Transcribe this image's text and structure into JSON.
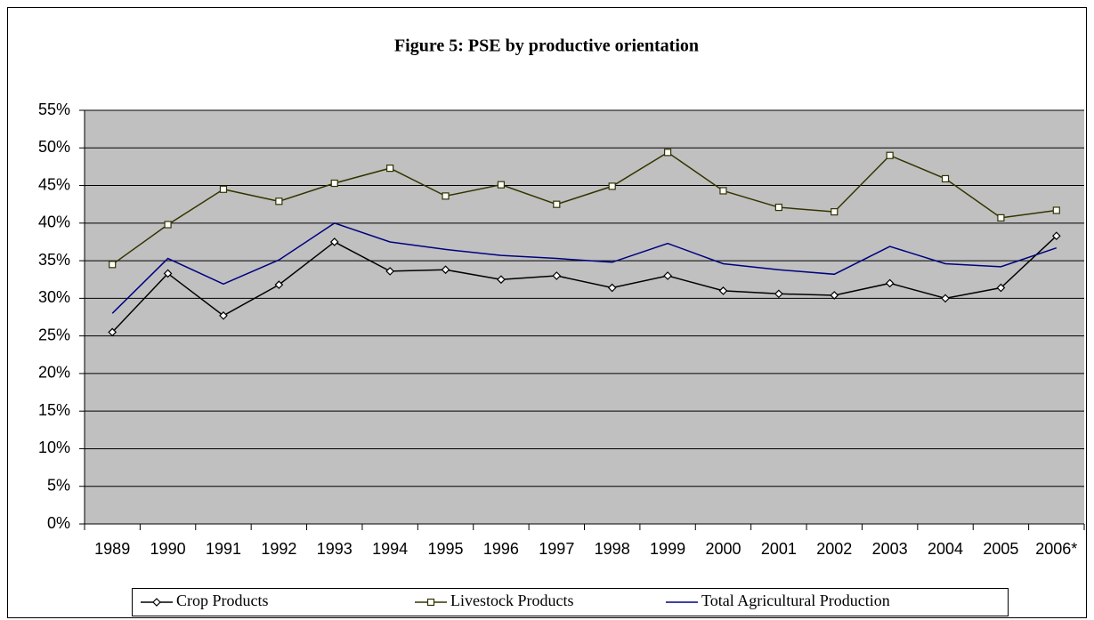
{
  "chart_data": {
    "type": "line",
    "title": "Figure 5:  PSE by productive orientation",
    "categories": [
      "1989",
      "1990",
      "1991",
      "1992",
      "1993",
      "1994",
      "1995",
      "1996",
      "1997",
      "1998",
      "1999",
      "2000",
      "2001",
      "2002",
      "2003",
      "2004",
      "2005",
      "2006*"
    ],
    "series": [
      {
        "name": "Crop Products",
        "color": "#000000",
        "marker": "diamond",
        "values": [
          25.5,
          33.3,
          27.7,
          31.8,
          37.5,
          33.6,
          33.8,
          32.5,
          33.0,
          31.4,
          33.0,
          31.0,
          30.6,
          30.4,
          32.0,
          30.0,
          31.4,
          38.3
        ]
      },
      {
        "name": "Livestock Products",
        "color": "#333300",
        "marker": "square",
        "values": [
          34.5,
          39.8,
          44.5,
          42.9,
          45.3,
          47.3,
          43.6,
          45.1,
          42.5,
          44.9,
          49.4,
          44.3,
          42.1,
          41.5,
          49.0,
          45.9,
          40.7,
          41.7
        ]
      },
      {
        "name": "Total Agricultural Production",
        "color": "#000080",
        "marker": "none",
        "values": [
          28.0,
          35.3,
          31.9,
          35.1,
          40.0,
          37.5,
          36.5,
          35.7,
          35.3,
          34.8,
          37.3,
          34.6,
          33.8,
          33.2,
          36.9,
          34.6,
          34.2,
          36.7
        ]
      }
    ],
    "ylim": [
      0,
      55
    ],
    "yticks": [
      {
        "value": 0,
        "label": "0%"
      },
      {
        "value": 5,
        "label": "5%"
      },
      {
        "value": 10,
        "label": "10%"
      },
      {
        "value": 15,
        "label": "15%"
      },
      {
        "value": 20,
        "label": "20%"
      },
      {
        "value": 25,
        "label": "25%"
      },
      {
        "value": 30,
        "label": "30%"
      },
      {
        "value": 35,
        "label": "35%"
      },
      {
        "value": 40,
        "label": "40%"
      },
      {
        "value": 45,
        "label": "45%"
      },
      {
        "value": 50,
        "label": "50%"
      },
      {
        "value": 55,
        "label": "55%"
      }
    ],
    "grid": true,
    "plot_background": "#c0c0c0",
    "legend": "bottom"
  }
}
